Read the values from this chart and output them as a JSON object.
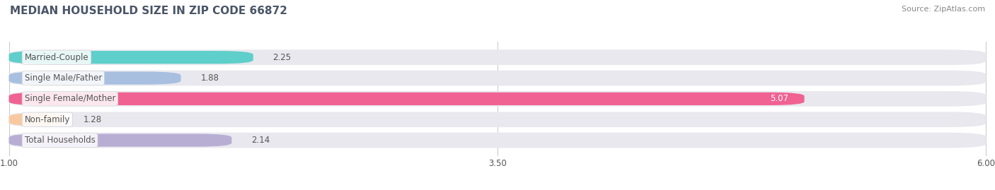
{
  "title": "MEDIAN HOUSEHOLD SIZE IN ZIP CODE 66872",
  "source": "Source: ZipAtlas.com",
  "categories": [
    "Married-Couple",
    "Single Male/Father",
    "Single Female/Mother",
    "Non-family",
    "Total Households"
  ],
  "values": [
    2.25,
    1.88,
    5.07,
    1.28,
    2.14
  ],
  "bar_colors": [
    "#5ecfca",
    "#a8bfe0",
    "#f06292",
    "#f8c9a0",
    "#b8aed4"
  ],
  "bg_bar_color": "#e8e8ee",
  "xlim_data": [
    0,
    6.0
  ],
  "xstart": 1.0,
  "xend": 6.0,
  "xticks": [
    1.0,
    3.5,
    6.0
  ],
  "bar_height": 0.62,
  "label_fontsize": 8.5,
  "value_fontsize": 8.5,
  "title_fontsize": 11,
  "source_fontsize": 8,
  "title_color": "#4a5568",
  "label_color": "#555555",
  "value_color": "#555555",
  "source_color": "#888888",
  "background_color": "#ffffff",
  "grid_color": "#cccccc"
}
